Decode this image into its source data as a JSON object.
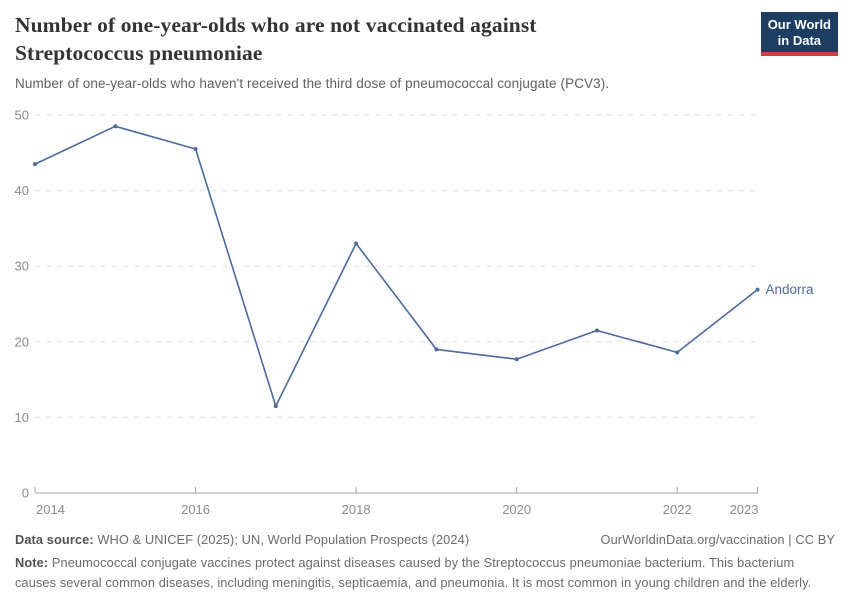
{
  "header": {
    "title": "Number of one-year-olds who are not vaccinated against Streptococcus pneumoniae",
    "subtitle": "Number of one-year-olds who haven't received the third dose of pneumococcal conjugate (PCV3)."
  },
  "logo": {
    "line1": "Our World",
    "line2": "in Data",
    "bg_color": "#1d3d63",
    "accent_color": "#cf3f3f",
    "text_color": "#ffffff"
  },
  "chart_data": {
    "type": "line",
    "title": "Number of one-year-olds who are not vaccinated against Streptococcus pneumoniae",
    "xlabel": "",
    "ylabel": "",
    "x": [
      2014,
      2015,
      2016,
      2017,
      2018,
      2019,
      2020,
      2021,
      2022,
      2023
    ],
    "series": [
      {
        "name": "Andorra",
        "color": "#4C6A9C",
        "values": [
          43.5,
          48.5,
          45.5,
          11.5,
          33,
          19,
          17.7,
          21.5,
          18.6,
          26.9
        ]
      }
    ],
    "xlim": [
      2014,
      2023
    ],
    "ylim": [
      0,
      50
    ],
    "x_ticks": [
      2014,
      2016,
      2018,
      2020,
      2022,
      2023
    ],
    "y_ticks": [
      0,
      10,
      20,
      30,
      40,
      50
    ],
    "grid": "horizontal-dashed",
    "legend": "end-of-line-label"
  },
  "footer": {
    "datasource_label": "Data source:",
    "datasource_text": " WHO & UNICEF (2025); UN, World Population Prospects (2024)",
    "license_text": "OurWorldinData.org/vaccination | CC BY",
    "note_label": "Note:",
    "note_text": " Pneumococcal conjugate vaccines protect against diseases caused by the Streptococcus pneumoniae bacterium. This bacterium causes several common diseases, including meningitis, septicaemia, and pneumonia. It is most common in young children and the elderly."
  }
}
